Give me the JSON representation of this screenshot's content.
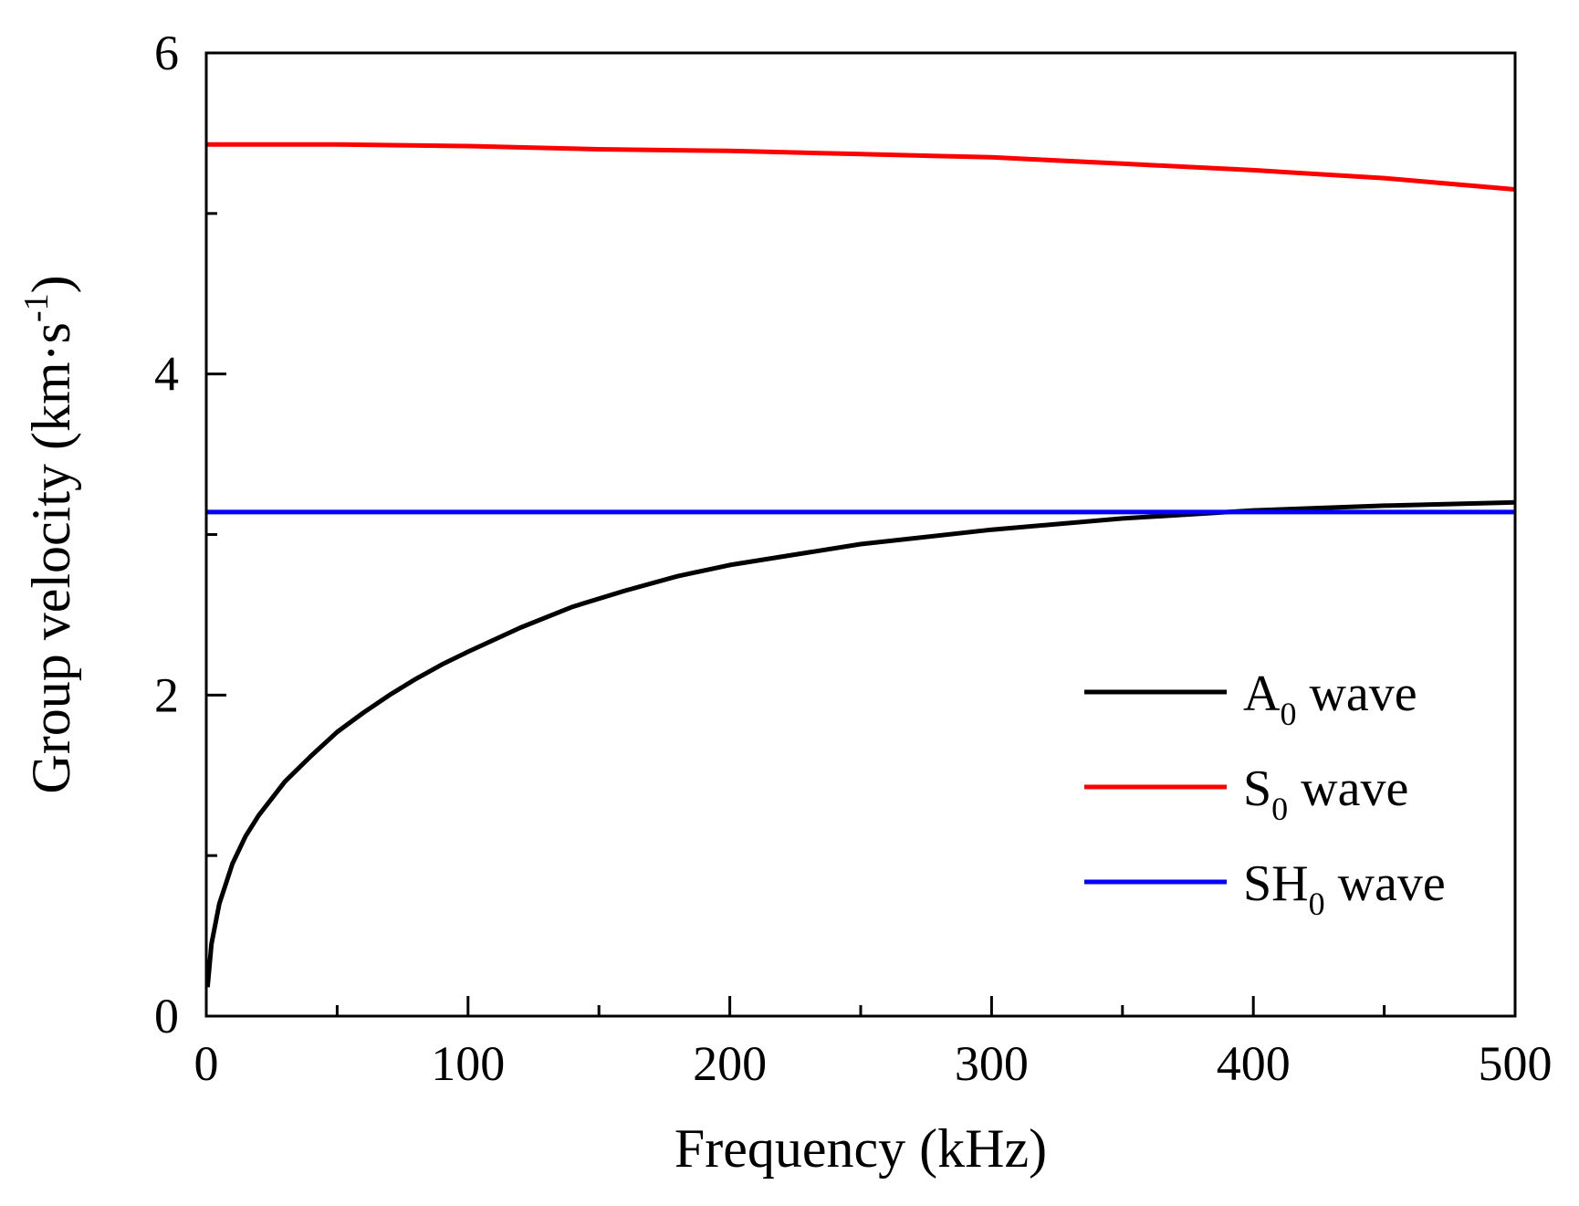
{
  "chart_data": {
    "type": "line",
    "title": "",
    "xlabel": "Frequency (kHz)",
    "ylabel": {
      "main": "Group velocity (km·s",
      "sup": "-1",
      "close": ")"
    },
    "xlim": [
      0,
      500
    ],
    "ylim": [
      0,
      6
    ],
    "x_ticks": [
      "0",
      "100",
      "200",
      "300",
      "400",
      "500"
    ],
    "y_ticks": [
      "0",
      "2",
      "4",
      "6"
    ],
    "x_tick_values": [
      0,
      100,
      200,
      300,
      400,
      500
    ],
    "y_tick_values": [
      0,
      2,
      4,
      6
    ],
    "x_minor_tick_values": [
      50,
      150,
      250,
      350,
      450
    ],
    "y_minor_tick_values": [
      1,
      3,
      5
    ],
    "grid": false,
    "legend_position": "bottom-right",
    "series": [
      {
        "key": "a0",
        "name_main": "A",
        "name_sub": "0",
        "name_rest": " wave",
        "color": "#000000",
        "x": [
          0.5,
          2,
          5,
          10,
          15,
          20,
          30,
          40,
          50,
          60,
          70,
          80,
          90,
          100,
          120,
          140,
          160,
          180,
          200,
          250,
          300,
          350,
          400,
          450,
          500
        ],
        "y": [
          0.18,
          0.45,
          0.7,
          0.95,
          1.12,
          1.25,
          1.46,
          1.62,
          1.77,
          1.89,
          2.0,
          2.1,
          2.19,
          2.27,
          2.42,
          2.55,
          2.65,
          2.74,
          2.81,
          2.94,
          3.03,
          3.1,
          3.15,
          3.18,
          3.2
        ]
      },
      {
        "key": "s0",
        "name_main": "S",
        "name_sub": "0",
        "name_rest": " wave",
        "color": "#ff0000",
        "x": [
          0,
          50,
          100,
          150,
          200,
          250,
          300,
          350,
          400,
          450,
          500
        ],
        "y": [
          5.43,
          5.43,
          5.42,
          5.4,
          5.39,
          5.37,
          5.35,
          5.31,
          5.27,
          5.22,
          5.15
        ]
      },
      {
        "key": "sh0",
        "name_main": "SH",
        "name_sub": "0",
        "name_rest": " wave",
        "color": "#0000ff",
        "x": [
          0,
          100,
          200,
          300,
          400,
          500
        ],
        "y": [
          3.14,
          3.14,
          3.14,
          3.14,
          3.14,
          3.14
        ]
      }
    ]
  }
}
